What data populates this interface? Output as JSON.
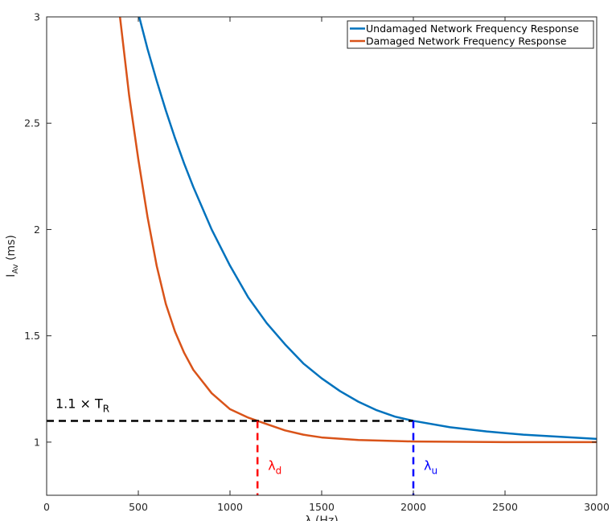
{
  "chart_data": {
    "type": "line",
    "xlabel": "λ (Hz)",
    "ylabel": {
      "main": "I",
      "sub": "Av",
      "suffix": " (ms)"
    },
    "xlim": [
      0,
      3000
    ],
    "ylim": [
      0.75,
      3.0
    ],
    "xticks": [
      0,
      500,
      1000,
      1500,
      2000,
      2500,
      3000
    ],
    "yticks": [
      1,
      1.5,
      2,
      2.5,
      3
    ],
    "grid": false,
    "legend": "top-right",
    "series": [
      {
        "name": "Undamaged Network Frequency Response",
        "color": "#0072BD",
        "x": [
          505,
          550,
          600,
          650,
          700,
          750,
          800,
          900,
          1000,
          1100,
          1200,
          1300,
          1400,
          1500,
          1600,
          1700,
          1800,
          1900,
          2000,
          2200,
          2400,
          2600,
          2800,
          3000
        ],
        "y": [
          3.0,
          2.85,
          2.7,
          2.56,
          2.43,
          2.31,
          2.2,
          2.0,
          1.83,
          1.68,
          1.56,
          1.46,
          1.37,
          1.3,
          1.24,
          1.19,
          1.15,
          1.12,
          1.1,
          1.07,
          1.05,
          1.035,
          1.025,
          1.015
        ]
      },
      {
        "name": "Damaged Network Frequency Response",
        "color": "#D95319",
        "x": [
          400,
          450,
          500,
          550,
          600,
          650,
          700,
          750,
          800,
          900,
          1000,
          1100,
          1150,
          1200,
          1300,
          1400,
          1500,
          1700,
          2000,
          2500,
          3000
        ],
        "y": [
          3.0,
          2.63,
          2.33,
          2.06,
          1.83,
          1.65,
          1.52,
          1.42,
          1.34,
          1.23,
          1.155,
          1.115,
          1.1,
          1.085,
          1.055,
          1.035,
          1.022,
          1.01,
          1.003,
          1.0,
          1.0
        ]
      }
    ],
    "annotations": {
      "threshold": {
        "y": 1.1,
        "x_from": 0,
        "x_to": 2000,
        "label_main": "1.1 × T",
        "label_sub": "R",
        "color": "#000000"
      },
      "markers": [
        {
          "x": 1150,
          "y_top": 1.1,
          "label_main": "λ",
          "label_sub": "d",
          "color": "#FF0000"
        },
        {
          "x": 2000,
          "y_top": 1.1,
          "label_main": "λ",
          "label_sub": "u",
          "color": "#0000FF"
        }
      ]
    }
  }
}
